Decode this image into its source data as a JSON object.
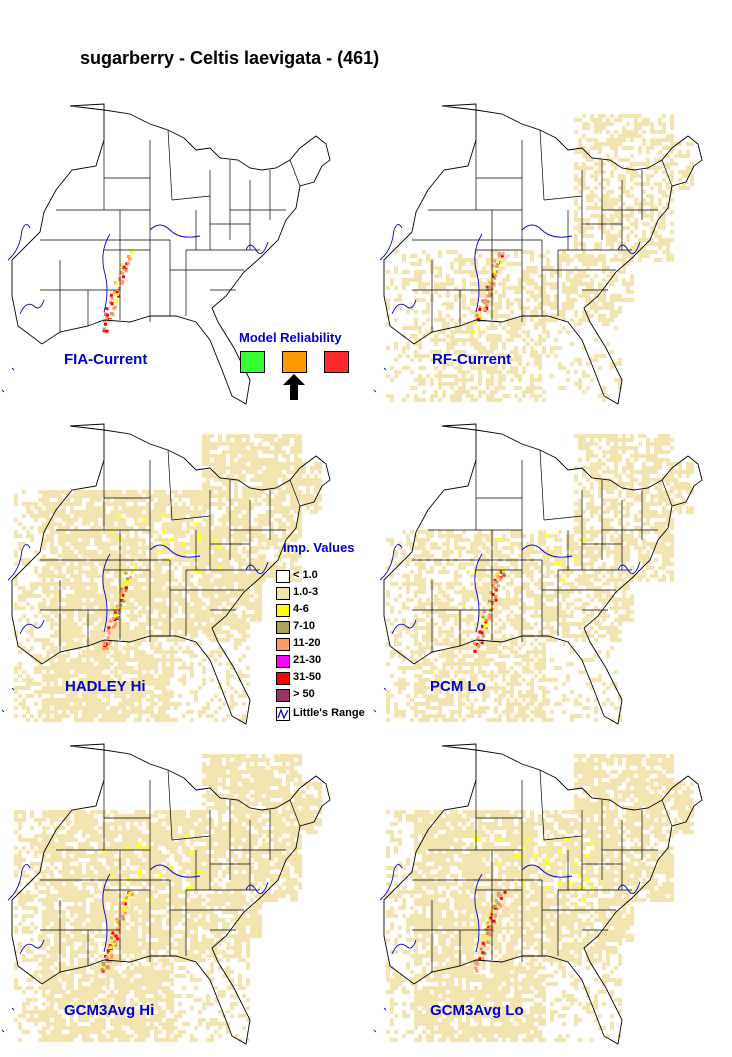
{
  "title": "sugarberry - Celtis laevigata - (461)",
  "maps": [
    {
      "label": "FIA-Current",
      "intensity": 0
    },
    {
      "label": "RF-Current",
      "intensity": 1
    },
    {
      "label": "HADLEY Hi",
      "intensity": 3
    },
    {
      "label": "PCM Lo",
      "intensity": 2
    },
    {
      "label": "GCM3Avg Hi",
      "intensity": 3
    },
    {
      "label": "GCM3Avg Lo",
      "intensity": 3
    }
  ],
  "reliability": {
    "title": "Model Reliability",
    "colors": [
      "#33ff33",
      "#ff9900",
      "#ff2a2a"
    ],
    "selected_index": 1
  },
  "legend": {
    "title": "Imp. Values",
    "items": [
      {
        "label": "< 1.0",
        "color": "#ffffff"
      },
      {
        "label": "1.0-3",
        "color": "#f3e4b0"
      },
      {
        "label": "4-6",
        "color": "#ffff00"
      },
      {
        "label": "7-10",
        "color": "#b0a060"
      },
      {
        "label": "11-20",
        "color": "#ff9966"
      },
      {
        "label": "21-30",
        "color": "#ff00ff"
      },
      {
        "label": "31-50",
        "color": "#ff0000"
      },
      {
        "label": "> 50",
        "color": "#993366"
      }
    ],
    "range_label": "Little's Range"
  }
}
